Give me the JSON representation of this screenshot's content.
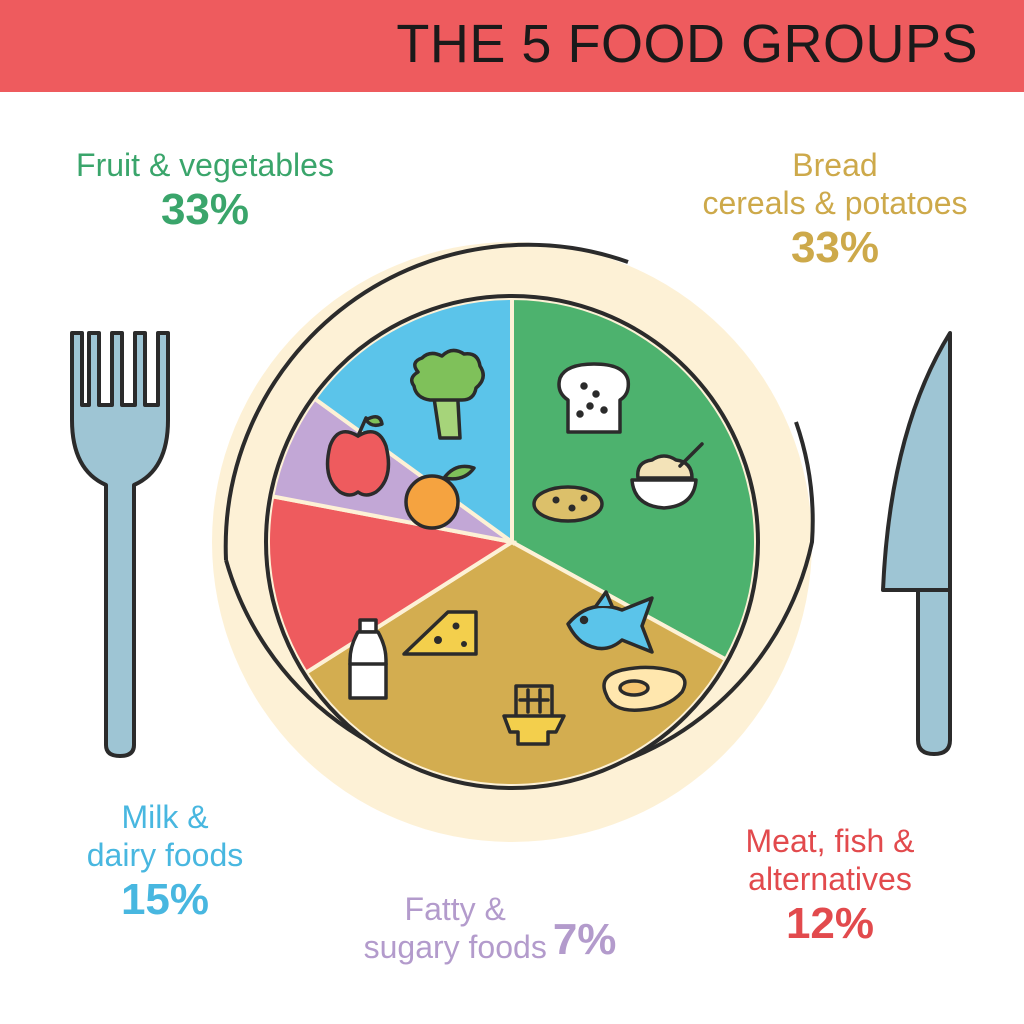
{
  "banner": {
    "title": "THE 5 FOOD GROUPS",
    "color": "#ee5b5e"
  },
  "chart_data": {
    "type": "pie",
    "title": "THE 5 FOOD GROUPS",
    "slices": [
      {
        "label": "Fruit & vegetables",
        "name_lines": [
          "Fruit & vegetables"
        ],
        "value": 33,
        "value_label": "33%",
        "color": "#4db26e",
        "icons": [
          "broccoli-icon",
          "apple-icon",
          "orange-icon"
        ]
      },
      {
        "label": "Bread cereals & potatoes",
        "name_lines": [
          "Bread",
          "cereals & potatoes"
        ],
        "value": 33,
        "value_label": "33%",
        "color": "#d3ad50",
        "icons": [
          "bread-icon",
          "potato-icon",
          "cereal-bowl-icon"
        ]
      },
      {
        "label": "Meat, fish & alternatives",
        "name_lines": [
          "Meat, fish &",
          "alternatives"
        ],
        "value": 12,
        "value_label": "12%",
        "color": "#ee5b5e",
        "icons": [
          "fish-icon",
          "steak-icon"
        ]
      },
      {
        "label": "Fatty & sugary foods",
        "name_lines": [
          "Fatty &",
          "sugary foods"
        ],
        "value": 7,
        "value_label": "7%",
        "color": "#c2a7d6",
        "icons": [
          "chocolate-icon"
        ]
      },
      {
        "label": "Milk & dairy foods",
        "name_lines": [
          "Milk &",
          "dairy foods"
        ],
        "value": 15,
        "value_label": "15%",
        "color": "#5bc4ea",
        "icons": [
          "milk-bottle-icon",
          "cheese-icon"
        ]
      }
    ],
    "label_colors": {
      "fruit": "#3aa56b",
      "bread": "#cda94a",
      "meat": "#e24a4d",
      "fatty": "#b39bcc",
      "milk": "#48b7e0"
    },
    "plate_color": "#fdf1d6",
    "outline_color": "#2b2b2b",
    "cutlery_color": "#9ec5d4",
    "icons": [
      "fork-icon",
      "knife-icon"
    ]
  }
}
